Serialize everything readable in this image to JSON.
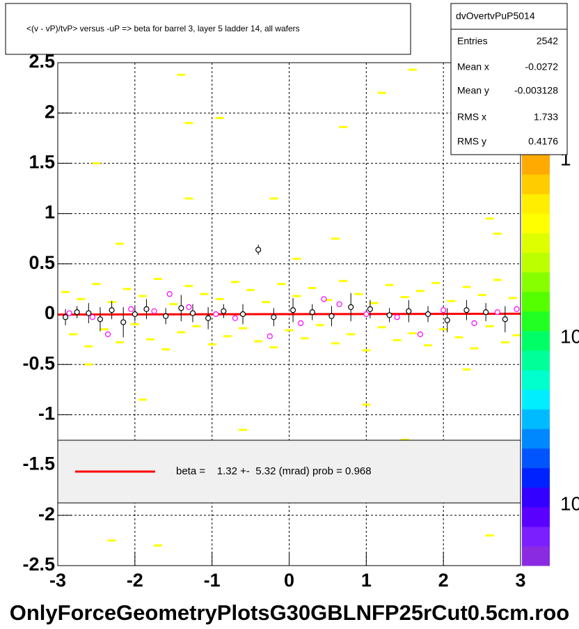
{
  "chart_data": {
    "type": "scatter",
    "title": "<(v - vP)/tvP> versus  -uP => beta for barrel 3, layer 5 ladder 14, all wafers",
    "x_label": "OnlyForceGeometryPlotsG30GBLNFP25rCut0.5cm.roo",
    "xlim": [
      -3,
      3
    ],
    "ylim": [
      -2.5,
      2.5
    ],
    "xticks": [
      -3,
      -2,
      -1,
      0,
      1,
      2,
      3
    ],
    "yticks": [
      -2.5,
      -2,
      -1.5,
      -1,
      -0.5,
      0,
      0.5,
      1,
      1.5,
      2,
      2.5
    ],
    "grid": true,
    "z_labels": [
      "1",
      "10",
      "10"
    ],
    "stats": {
      "name": "dvOvertvPuP5014",
      "rows": [
        [
          "Entries",
          2542
        ],
        [
          "Mean x",
          -0.0272
        ],
        [
          "Mean y",
          -0.003128
        ],
        [
          "RMS x",
          1.733
        ],
        [
          "RMS y",
          0.4176
        ]
      ]
    },
    "series": [
      {
        "color": "#ffff00",
        "marker": "cell",
        "x": [
          -2.9,
          -2.7,
          -2.5,
          -2.3,
          -2.1,
          -1.9,
          -1.7,
          -1.5,
          -1.3,
          -1.1,
          -0.9,
          -0.7,
          -0.5,
          -0.3,
          -0.1,
          0.1,
          0.3,
          0.5,
          0.7,
          0.9,
          1.1,
          1.3,
          1.5,
          1.7,
          1.9,
          2.1,
          2.3,
          2.5,
          2.7,
          2.9,
          -2.8,
          -2.6,
          -2.4,
          -2.2,
          -2.0,
          -1.8,
          -1.6,
          -1.4,
          -1.2,
          -1.0,
          -0.8,
          -0.6,
          -0.4,
          -0.2,
          0.0,
          0.2,
          0.4,
          0.6,
          0.8,
          1.0,
          1.2,
          1.4,
          1.6,
          1.8,
          2.0,
          2.2,
          2.4,
          2.6,
          2.8,
          2.95,
          -2.5,
          -1.4,
          -1.3,
          -0.9,
          -2.2,
          -0.2,
          1.2,
          1.6,
          0.7,
          2.6,
          -1.3,
          0.1,
          -2.6,
          1.0,
          2.3,
          -2.3,
          -1.9,
          -0.6,
          2.6,
          -1.7,
          1.5,
          2.7,
          0.6
        ],
        "values": [
          0.22,
          0.15,
          0.3,
          0.12,
          0.25,
          0.18,
          0.35,
          0.1,
          0.28,
          0.2,
          0.15,
          0.32,
          0.24,
          0.12,
          0.3,
          0.18,
          0.26,
          0.14,
          0.33,
          0.2,
          0.11,
          0.29,
          0.17,
          0.23,
          0.31,
          0.13,
          0.27,
          0.19,
          0.34,
          0.16,
          -0.2,
          -0.32,
          -0.15,
          -0.28,
          -0.1,
          -0.25,
          -0.35,
          -0.18,
          -0.12,
          -0.3,
          -0.22,
          -0.14,
          -0.27,
          -0.33,
          -0.16,
          -0.24,
          -0.11,
          -0.29,
          -0.2,
          -0.36,
          -0.13,
          -0.26,
          -0.19,
          -0.31,
          -0.15,
          -0.23,
          -0.34,
          -0.12,
          -0.28,
          -0.21,
          1.5,
          2.38,
          1.9,
          1.95,
          0.7,
          1.15,
          2.2,
          2.43,
          1.86,
          0.95,
          1.15,
          0.55,
          -0.5,
          -0.9,
          -0.55,
          -2.25,
          -0.85,
          -1.15,
          -2.2,
          -2.3,
          -1.25,
          0.8,
          0.75
        ]
      },
      {
        "name": "beta =    1.32 +-  5.32 (mrad) prob = 0.968",
        "color": "#ff0000",
        "marker": "line",
        "x": [
          -3,
          3
        ],
        "values": [
          -0.004,
          0.004
        ]
      },
      {
        "color": "#ff00ff",
        "marker": "circle",
        "x": [
          -2.85,
          -2.55,
          -2.35,
          -2.05,
          -1.75,
          -1.55,
          -1.3,
          -0.95,
          -0.7,
          -0.25,
          0.15,
          0.45,
          0.65,
          1.0,
          1.4,
          1.7,
          2.0,
          2.4,
          2.7,
          2.95
        ],
        "values": [
          0.01,
          -0.03,
          -0.2,
          0.05,
          0.03,
          0.2,
          0.07,
          0.0,
          -0.04,
          -0.22,
          -0.09,
          0.15,
          0.1,
          0.0,
          -0.03,
          -0.2,
          0.04,
          -0.09,
          0.02,
          0.05
        ]
      },
      {
        "color": "#000000",
        "marker": "circle",
        "x": [
          -2.9,
          -2.75,
          -2.6,
          -2.45,
          -2.3,
          -2.15,
          -2.0,
          -1.85,
          -1.6,
          -1.4,
          -1.25,
          -1.05,
          -0.85,
          -0.6,
          -0.4,
          -0.2,
          0.05,
          0.3,
          0.55,
          0.8,
          1.05,
          1.3,
          1.55,
          1.8,
          2.05,
          2.3,
          2.55,
          2.8
        ],
        "values": [
          -0.03,
          0.02,
          0.01,
          -0.05,
          0.04,
          -0.08,
          0.0,
          0.05,
          -0.02,
          0.06,
          0.01,
          -0.04,
          0.03,
          0.0,
          0.64,
          -0.03,
          0.04,
          0.02,
          -0.02,
          0.07,
          0.05,
          -0.01,
          0.03,
          0.0,
          -0.06,
          0.04,
          0.02,
          -0.05
        ],
        "errors": [
          0.08,
          0.06,
          0.1,
          0.12,
          0.09,
          0.15,
          0.07,
          0.1,
          0.08,
          0.13,
          0.09,
          0.11,
          0.07,
          0.1,
          0.05,
          0.09,
          0.12,
          0.08,
          0.1,
          0.14,
          0.09,
          0.07,
          0.11,
          0.08,
          0.12,
          0.1,
          0.09,
          0.13
        ]
      }
    ]
  }
}
